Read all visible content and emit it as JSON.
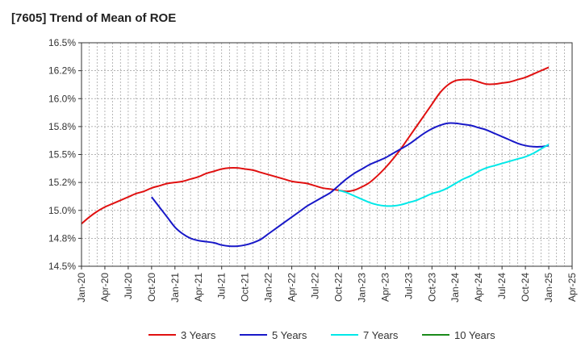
{
  "chart_data": {
    "type": "line",
    "title": "[7605]  Trend of Mean of ROE",
    "xlabel": "",
    "ylabel": "",
    "x_ticks": [
      "Jan-20",
      "Apr-20",
      "Jul-20",
      "Oct-20",
      "Jan-21",
      "Apr-21",
      "Jul-21",
      "Oct-21",
      "Jan-22",
      "Apr-22",
      "Jul-22",
      "Oct-22",
      "Jan-23",
      "Apr-23",
      "Jul-23",
      "Oct-23",
      "Jan-24",
      "Apr-24",
      "Jul-24",
      "Oct-24",
      "Jan-25",
      "Apr-25"
    ],
    "y_ticks": [
      "14.5%",
      "14.8%",
      "15.0%",
      "15.2%",
      "15.5%",
      "15.8%",
      "16.0%",
      "16.2%",
      "16.5%"
    ],
    "ylim": [
      14.5,
      16.5
    ],
    "y_unit": "%",
    "grid": true,
    "legend_position": "bottom",
    "series": [
      {
        "name": "3 Years",
        "color": "#e01010",
        "x": [
          "Jan-20",
          "Feb-20",
          "Mar-20",
          "Apr-20",
          "May-20",
          "Jun-20",
          "Jul-20",
          "Aug-20",
          "Sep-20",
          "Oct-20",
          "Nov-20",
          "Dec-20",
          "Jan-21",
          "Feb-21",
          "Mar-21",
          "Apr-21",
          "May-21",
          "Jun-21",
          "Jul-21",
          "Aug-21",
          "Sep-21",
          "Oct-21",
          "Nov-21",
          "Dec-21",
          "Jan-22",
          "Feb-22",
          "Mar-22",
          "Apr-22",
          "May-22",
          "Jun-22",
          "Jul-22",
          "Aug-22",
          "Sep-22",
          "Oct-22",
          "Nov-22",
          "Dec-22",
          "Jan-23",
          "Feb-23",
          "Mar-23",
          "Apr-23",
          "May-23",
          "Jun-23",
          "Jul-23",
          "Aug-23",
          "Sep-23",
          "Oct-23",
          "Nov-23",
          "Dec-23",
          "Jan-24",
          "Feb-24",
          "Mar-24",
          "Apr-24",
          "May-24",
          "Jun-24",
          "Jul-24",
          "Aug-24",
          "Sep-24",
          "Oct-24",
          "Nov-24",
          "Dec-24",
          "Jan-25"
        ],
        "values": [
          14.88,
          14.94,
          14.99,
          15.03,
          15.06,
          15.09,
          15.12,
          15.15,
          15.17,
          15.2,
          15.22,
          15.24,
          15.25,
          15.26,
          15.28,
          15.3,
          15.33,
          15.35,
          15.37,
          15.38,
          15.38,
          15.37,
          15.36,
          15.34,
          15.32,
          15.3,
          15.28,
          15.26,
          15.25,
          15.24,
          15.22,
          15.2,
          15.19,
          15.18,
          15.17,
          15.18,
          15.21,
          15.25,
          15.31,
          15.38,
          15.46,
          15.55,
          15.65,
          15.75,
          15.85,
          15.95,
          16.05,
          16.12,
          16.16,
          16.17,
          16.17,
          16.15,
          16.13,
          16.13,
          16.14,
          16.15,
          16.17,
          16.19,
          16.22,
          16.25,
          16.28
        ]
      },
      {
        "name": "5 Years",
        "color": "#1818c8",
        "x": [
          "Oct-20",
          "Nov-20",
          "Dec-20",
          "Jan-21",
          "Feb-21",
          "Mar-21",
          "Apr-21",
          "May-21",
          "Jun-21",
          "Jul-21",
          "Aug-21",
          "Sep-21",
          "Oct-21",
          "Nov-21",
          "Dec-21",
          "Jan-22",
          "Feb-22",
          "Mar-22",
          "Apr-22",
          "May-22",
          "Jun-22",
          "Jul-22",
          "Aug-22",
          "Sep-22",
          "Oct-22",
          "Nov-22",
          "Dec-22",
          "Jan-23",
          "Feb-23",
          "Mar-23",
          "Apr-23",
          "May-23",
          "Jun-23",
          "Jul-23",
          "Aug-23",
          "Sep-23",
          "Oct-23",
          "Nov-23",
          "Dec-23",
          "Jan-24",
          "Feb-24",
          "Mar-24",
          "Apr-24",
          "May-24",
          "Jun-24",
          "Jul-24",
          "Aug-24",
          "Sep-24",
          "Oct-24",
          "Nov-24",
          "Dec-24",
          "Jan-25"
        ],
        "values": [
          15.12,
          15.03,
          14.94,
          14.85,
          14.79,
          14.75,
          14.73,
          14.72,
          14.71,
          14.69,
          14.68,
          14.68,
          14.69,
          14.71,
          14.74,
          14.79,
          14.84,
          14.89,
          14.94,
          14.99,
          15.04,
          15.08,
          15.12,
          15.16,
          15.22,
          15.28,
          15.33,
          15.37,
          15.41,
          15.44,
          15.47,
          15.51,
          15.55,
          15.59,
          15.64,
          15.69,
          15.73,
          15.76,
          15.78,
          15.78,
          15.77,
          15.76,
          15.74,
          15.72,
          15.69,
          15.66,
          15.63,
          15.6,
          15.58,
          15.57,
          15.57,
          15.58
        ]
      },
      {
        "name": "7 Years",
        "color": "#00e8e8",
        "x": [
          "Oct-22",
          "Nov-22",
          "Dec-22",
          "Jan-23",
          "Feb-23",
          "Mar-23",
          "Apr-23",
          "May-23",
          "Jun-23",
          "Jul-23",
          "Aug-23",
          "Sep-23",
          "Oct-23",
          "Nov-23",
          "Dec-23",
          "Jan-24",
          "Feb-24",
          "Mar-24",
          "Apr-24",
          "May-24",
          "Jun-24",
          "Jul-24",
          "Aug-24",
          "Sep-24",
          "Oct-24",
          "Nov-24",
          "Dec-24",
          "Jan-25"
        ],
        "values": [
          15.18,
          15.16,
          15.13,
          15.1,
          15.07,
          15.05,
          15.04,
          15.04,
          15.05,
          15.07,
          15.09,
          15.12,
          15.15,
          15.17,
          15.2,
          15.24,
          15.28,
          15.31,
          15.35,
          15.38,
          15.4,
          15.42,
          15.44,
          15.46,
          15.48,
          15.51,
          15.55,
          15.59
        ]
      },
      {
        "name": "10 Years",
        "color": "#1a8a1a",
        "x": [],
        "values": []
      }
    ]
  }
}
